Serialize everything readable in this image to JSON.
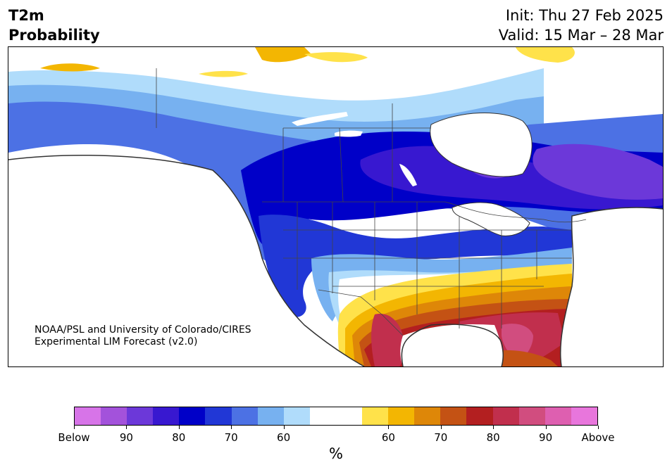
{
  "title": {
    "line1": "T2m",
    "line2": "Probability"
  },
  "info": {
    "init": "Init: Thu 27 Feb 2025",
    "valid": "Valid: 15 Mar – 28 Mar"
  },
  "credit": {
    "line1": "NOAA/PSL and University of Colorado/CIRES",
    "line2": "Experimental LIM Forecast (v2.0)"
  },
  "colorbar": {
    "colors": [
      "#d774e8",
      "#a352db",
      "#6c38d9",
      "#3818d0",
      "#0000c8",
      "#2137d6",
      "#4c71e4",
      "#77b1f0",
      "#b0dcfb",
      "#ffffff",
      "#ffffff",
      "#ffe24a",
      "#f3b602",
      "#de8708",
      "#c45214",
      "#b31f20",
      "#c12f4d",
      "#d14d7f",
      "#de5fb0",
      "#e876dc"
    ],
    "tick_labels": [
      "Below",
      "90",
      "80",
      "70",
      "60",
      "60",
      "70",
      "80",
      "90",
      "Above"
    ],
    "unit": "%"
  },
  "map": {
    "ocean_color": "#ffffff",
    "border_color": "#333333"
  }
}
